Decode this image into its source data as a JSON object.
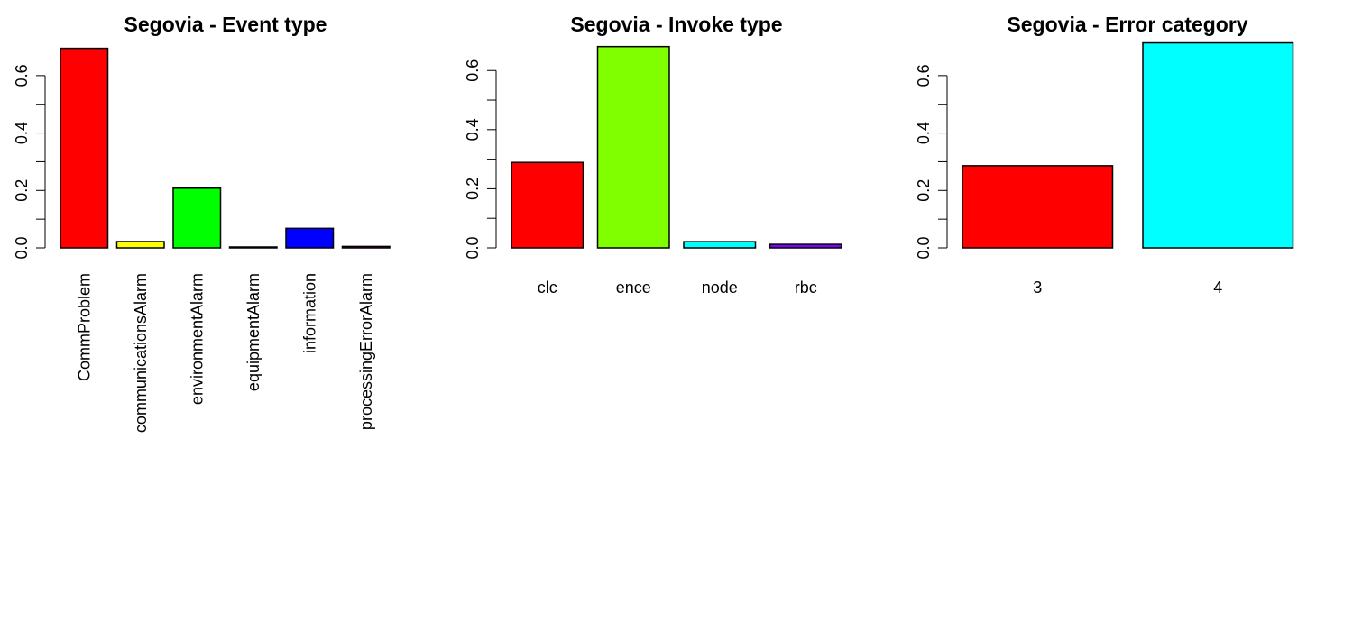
{
  "chart_data": [
    {
      "type": "bar",
      "title": "Segovia - Event type",
      "categories": [
        "CommProblem",
        "communicationsAlarm",
        "environmentAlarm",
        "equipmentAlarm",
        "information",
        "processingErrorAlarm"
      ],
      "values": [
        0.695,
        0.022,
        0.208,
        0.003,
        0.068,
        0.005
      ],
      "colors": [
        "#FF0000",
        "#FFFF00",
        "#00FF00",
        "#00FFFF",
        "#0000FF",
        "#FF00FF"
      ],
      "ylim": [
        0,
        0.7
      ],
      "yticks": [
        0.0,
        0.2,
        0.4,
        0.6
      ],
      "ytick_labels": [
        "0.0",
        "0.2",
        "0.4",
        "0.6"
      ],
      "label_orientation": "vertical"
    },
    {
      "type": "bar",
      "title": "Segovia - Invoke type",
      "categories": [
        "clc",
        "ence",
        "node",
        "rbc"
      ],
      "values": [
        0.289,
        0.681,
        0.021,
        0.012
      ],
      "colors": [
        "#FF0000",
        "#80FF00",
        "#00FFFF",
        "#8000FF"
      ],
      "ylim": [
        0,
        0.68
      ],
      "yticks": [
        0.0,
        0.2,
        0.4,
        0.6
      ],
      "ytick_labels": [
        "0.0",
        "0.2",
        "0.4",
        "0.6"
      ],
      "label_orientation": "horizontal"
    },
    {
      "type": "bar",
      "title": "Segovia - Error category",
      "categories": [
        "3",
        "4"
      ],
      "values": [
        0.286,
        0.714
      ],
      "colors": [
        "#FF0000",
        "#00FFFF"
      ],
      "ylim": [
        0,
        0.7
      ],
      "yticks": [
        0.0,
        0.2,
        0.4,
        0.6
      ],
      "ytick_labels": [
        "0.0",
        "0.2",
        "0.4",
        "0.6"
      ],
      "label_orientation": "horizontal"
    }
  ]
}
